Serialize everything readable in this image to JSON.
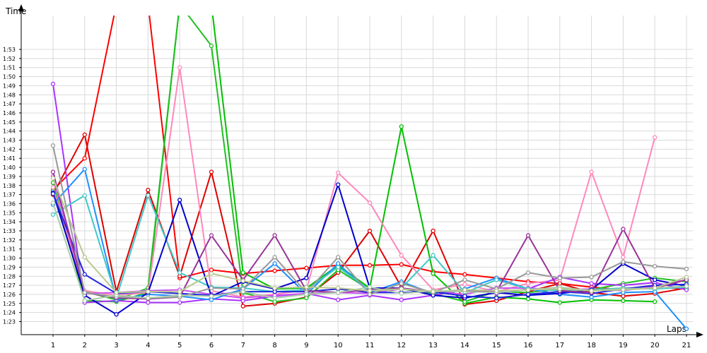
{
  "chart_data": {
    "type": "line",
    "xlabel": "Laps",
    "ylabel": "Time",
    "x": [
      1,
      2,
      3,
      4,
      5,
      6,
      7,
      8,
      9,
      10,
      11,
      12,
      13,
      14,
      15,
      16,
      17,
      18,
      19,
      20,
      21
    ],
    "ylim": [
      82,
      118
    ],
    "yticks": [
      "1:23",
      "1:24",
      "1:25",
      "1:26",
      "1:27",
      "1:28",
      "1:29",
      "1:30",
      "1:31",
      "1:32",
      "1:33",
      "1:34",
      "1:35",
      "1:36",
      "1:37",
      "1:38",
      "1:39",
      "1:40",
      "1:41",
      "1:42",
      "1:43",
      "1:44",
      "1:45",
      "1:46",
      "1:47",
      "1:48",
      "1:49",
      "1:50",
      "1:51",
      "1:52",
      "1:53"
    ],
    "grid": true,
    "series": [
      {
        "color": "#ff0000",
        "values": [
          97.5,
          101,
          118,
          118,
          87.8,
          88.7,
          88.3,
          88.6,
          88.9,
          89.2,
          89.2,
          89.3,
          88.5,
          88.2,
          87.8,
          87.4,
          87.2,
          86.8,
          86.5,
          86.8,
          86.6
        ]
      },
      {
        "color": "#e00000",
        "values": [
          97,
          103.6,
          86.3,
          97.5,
          88,
          99.5,
          84.7,
          85,
          85.7,
          88.4,
          93,
          86.8,
          93,
          84.9,
          85.3,
          86.3,
          87.2,
          86.2,
          85.8,
          86.1,
          86.7
        ]
      },
      {
        "color": "#00c000",
        "values": [
          98.3,
          85.3,
          85.2,
          86.2,
          118,
          118,
          88.4,
          86.6,
          86.7,
          89.2,
          86.7,
          104.5,
          88.3,
          85,
          85.7,
          85.5,
          85.1,
          85.4,
          85.3,
          85.2,
          null
        ]
      },
      {
        "color": "#20c020",
        "values": [
          97.4,
          86.3,
          85.4,
          86.7,
          118,
          113.4,
          86.2,
          85.2,
          85.6,
          88.7,
          86.5,
          86.6,
          86.1,
          85.2,
          86.3,
          86.2,
          86.6,
          86.5,
          87.2,
          87.8,
          87.4
        ]
      },
      {
        "color": "#ff88bb",
        "values": [
          97.8,
          86.4,
          85.9,
          86.2,
          111,
          86.4,
          85.7,
          86,
          86.5,
          99.4,
          96.1,
          90.3,
          86.5,
          87.1,
          86.3,
          87.2,
          87.6,
          99.5,
          90.1,
          103.3,
          null
        ]
      },
      {
        "color": "#aa33ff",
        "values": [
          109.2,
          85.1,
          85.3,
          85.1,
          85.1,
          85.5,
          85.3,
          85.8,
          86.1,
          85.4,
          85.9,
          85.4,
          85.9,
          86.5,
          86.1,
          86.6,
          87.9,
          87.2,
          87.0,
          87.3,
          86.5
        ]
      },
      {
        "color": "#cc55ee",
        "values": [
          99,
          86.1,
          86.2,
          86.4,
          86.5,
          86.0,
          85.6,
          85.9,
          86.1,
          86.2,
          86.1,
          86.6,
          86.3,
          86.0,
          86.7,
          86.7,
          86.5,
          86.6,
          86.4,
          86.9,
          87.6
        ]
      },
      {
        "color": "#1e90ff",
        "values": [
          95.9,
          99.8,
          85.4,
          86.0,
          85.8,
          85.4,
          86.6,
          89.4,
          86.0,
          89.4,
          86.2,
          87.4,
          86.1,
          86.6,
          87.8,
          86.6,
          86.0,
          85.7,
          86.2,
          86.3,
          82.2
        ]
      },
      {
        "color": "#40c8c8",
        "values": [
          94.8,
          96.9,
          85.6,
          96.9,
          88.4,
          86.8,
          86.7,
          86.3,
          86.5,
          89.0,
          86.5,
          86.7,
          90.3,
          86.2,
          87.6,
          86.6,
          86.4,
          86.5,
          86.7,
          86.6,
          86.8
        ]
      },
      {
        "color": "#0000cc",
        "values": [
          97.2,
          85.9,
          83.8,
          86.2,
          96.4,
          85.8,
          87.4,
          86.6,
          87.8,
          98.1,
          86.7,
          86.7,
          85.9,
          85.6,
          86.2,
          85.9,
          86.1,
          86.5,
          89.4,
          87.6,
          86.9
        ]
      },
      {
        "color": "#2222dd",
        "values": [
          97.1,
          88.2,
          86.1,
          86.3,
          86.1,
          85.9,
          86.3,
          86.3,
          86.3,
          86.6,
          86.2,
          86.2,
          86.3,
          85.8,
          85.6,
          86.0,
          86.3,
          86.1,
          86.6,
          87.0,
          87.1
        ]
      },
      {
        "color": "#993399",
        "values": [
          99.5,
          86.2,
          85.6,
          85.5,
          85.7,
          92.5,
          87.6,
          92.5,
          86.4,
          86.2,
          86.5,
          86.7,
          86.3,
          86.4,
          86.3,
          92.5,
          86.4,
          86.2,
          93.2,
          86.7,
          87.6
        ]
      },
      {
        "color": "#999999",
        "values": [
          102.4,
          86.2,
          85.7,
          85.6,
          85.7,
          86.7,
          86.6,
          90.1,
          86.2,
          90.1,
          86.0,
          87.2,
          86.2,
          87.6,
          86.6,
          88.4,
          87.8,
          87.9,
          89.6,
          89.1,
          88.8
        ]
      },
      {
        "color": "#aaccaa",
        "values": [
          96.1,
          85.3,
          85.9,
          85.6,
          85.9,
          85.8,
          86.3,
          85.6,
          86.0,
          86.2,
          86.8,
          86.1,
          86.4,
          86.3,
          86.2,
          86.5,
          86.8,
          86.4,
          86.6,
          86.7,
          86.9
        ]
      },
      {
        "color": "#b8c890",
        "values": [
          98.8,
          90.1,
          86.2,
          86.3,
          86.3,
          88.3,
          87.5,
          86.7,
          86.8,
          86.7,
          86.4,
          86.6,
          86.3,
          86.5,
          86.4,
          86.5,
          86.6,
          86.4,
          86.5,
          86.7,
          87.9
        ]
      }
    ]
  }
}
